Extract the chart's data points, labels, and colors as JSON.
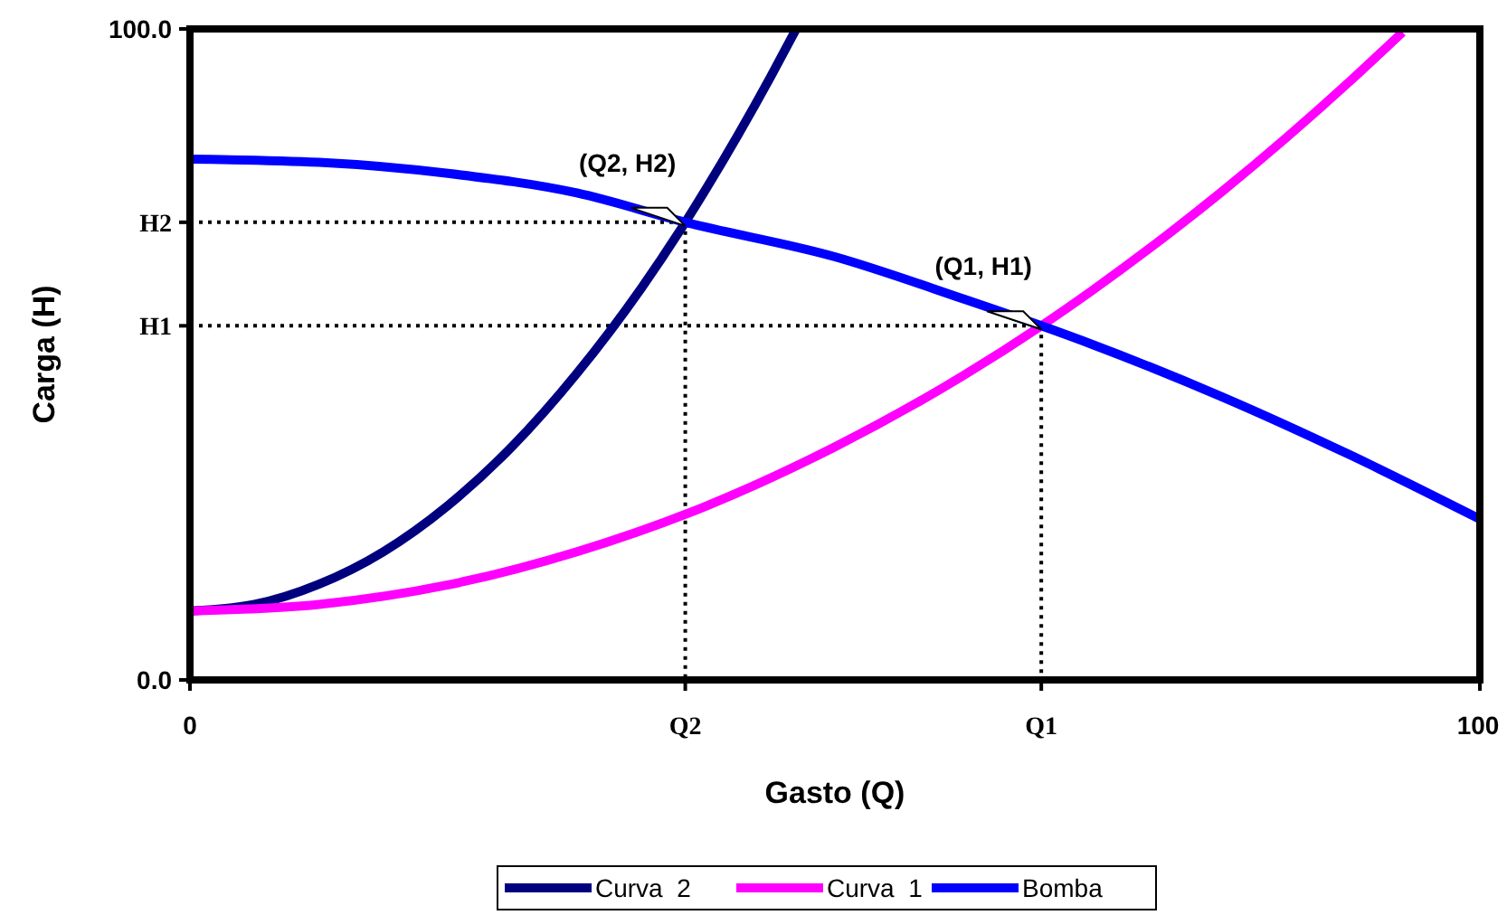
{
  "chart_data": {
    "type": "line",
    "xlabel": "Gasto (Q)",
    "ylabel": "Carga (H)",
    "xlim": [
      0,
      100
    ],
    "ylim": [
      0,
      100
    ],
    "xticks": [
      0,
      {
        "value": 38.4,
        "label": "Q2"
      },
      {
        "value": 66,
        "label": "Q1"
      },
      100
    ],
    "yticks": [
      {
        "value": 0,
        "label": "0.0"
      },
      {
        "value": 54.4,
        "label": "H1"
      },
      {
        "value": 70.3,
        "label": "H2"
      },
      {
        "value": 100,
        "label": "100.0"
      }
    ],
    "grid": false,
    "legend": "bottom",
    "marker": "none",
    "line_style": "solid",
    "series": [
      {
        "name": "Curva  2",
        "color": "#00007f",
        "x": [
          0,
          5,
          10,
          15,
          20,
          25,
          30,
          35,
          38.4,
          40,
          45,
          47
        ],
        "values": [
          10.6,
          11.6,
          14.7,
          19.7,
          26.8,
          35.9,
          47.1,
          60.2,
          70.3,
          75.4,
          92.6,
          100
        ]
      },
      {
        "name": "Curva  1",
        "color": "#ff00ff",
        "x": [
          0,
          10,
          20,
          30,
          40,
          50,
          60,
          66,
          70,
          80,
          90,
          94
        ],
        "values": [
          10.6,
          11.6,
          14.6,
          19.7,
          26.7,
          35.8,
          46.8,
          54.4,
          59.9,
          75.0,
          92.1,
          99.5
        ]
      },
      {
        "name": "Bomba",
        "color": "#0000ff",
        "x": [
          0,
          10,
          20,
          30,
          38.4,
          50,
          60,
          66,
          70,
          80,
          90,
          100
        ],
        "values": [
          80,
          79.5,
          77.8,
          74.8,
          70.3,
          65,
          58.5,
          54.4,
          51.5,
          43.5,
          34.5,
          24.7
        ]
      }
    ],
    "ref_lines": [
      {
        "axis": "y",
        "value": 70.3,
        "color": "#000000",
        "line_style": "dotted"
      },
      {
        "axis": "y",
        "value": 54.4,
        "color": "#000000",
        "line_style": "dotted"
      },
      {
        "axis": "x",
        "value": 38.4,
        "color": "#000000",
        "line_style": "dotted"
      },
      {
        "axis": "x",
        "value": 66,
        "color": "#000000",
        "line_style": "dotted"
      }
    ],
    "annotations": [
      {
        "text": "(Q2, H2)",
        "x": 38.4,
        "y": 70.3
      },
      {
        "text": "(Q1, H1)",
        "x": 66,
        "y": 54.4
      }
    ]
  }
}
